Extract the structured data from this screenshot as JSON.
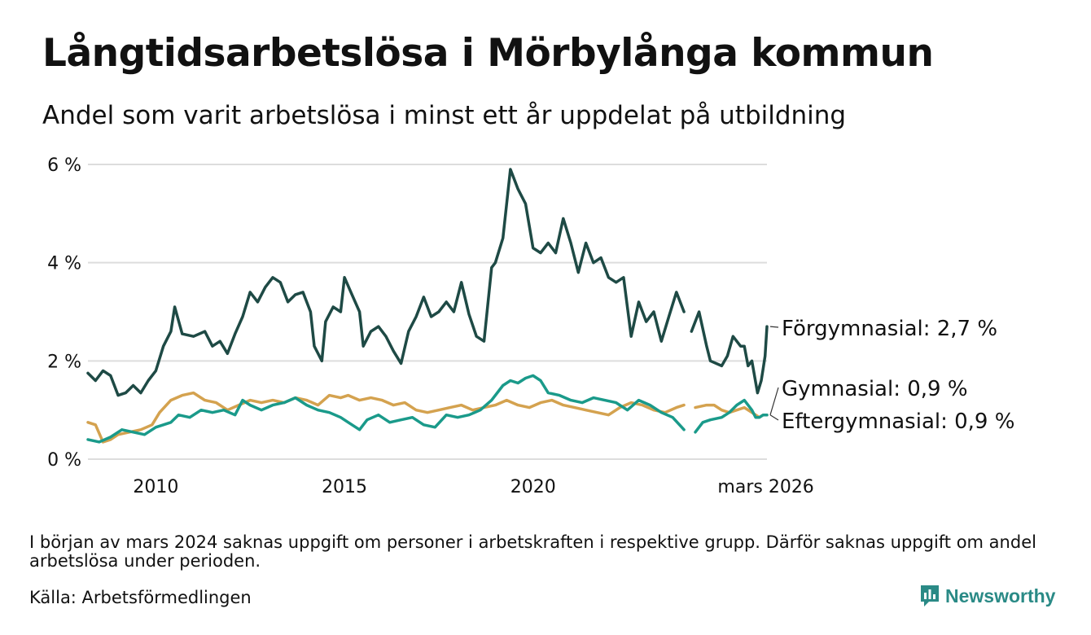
{
  "title": "Långtidsarbetslösa i Mörbylånga kommun",
  "subtitle": "Andel som varit arbetslösa i minst ett år uppdelat på utbildning",
  "note": "I början av mars 2024 saknas uppgift om personer i arbetskraften i respektive grupp. Därför saknas uppgift om andel arbetslösa under perioden.",
  "source": "Källa: Arbetsförmedlingen",
  "brand": "Newsworthy",
  "colors": {
    "forgymnasial": "#1e4a45",
    "gymnasial": "#1a9a8a",
    "eftergymnasial": "#d4a24f",
    "grid": "#dddddd",
    "brand": "#2a8a86"
  },
  "chart_data": {
    "type": "line",
    "y_ticks": [
      0,
      2,
      4,
      6
    ],
    "y_tick_labels": [
      "0 %",
      "2 %",
      "4 %",
      "6 %"
    ],
    "ylim": [
      0,
      6
    ],
    "x_range": [
      2008.2,
      2026.2
    ],
    "x_ticks": [
      2010,
      2015,
      2020,
      2026.17
    ],
    "x_tick_labels": [
      "2010",
      "2015",
      "2020",
      "mars 2026"
    ],
    "gap": [
      2024.0,
      2024.2
    ],
    "series": [
      {
        "name": "Förgymnasial",
        "key": "forgymnasial",
        "end_label": "Förgymnasial: 2,7 %",
        "points": [
          [
            2008.2,
            1.75
          ],
          [
            2008.4,
            1.6
          ],
          [
            2008.6,
            1.8
          ],
          [
            2008.8,
            1.7
          ],
          [
            2009.0,
            1.3
          ],
          [
            2009.2,
            1.35
          ],
          [
            2009.4,
            1.5
          ],
          [
            2009.6,
            1.35
          ],
          [
            2009.8,
            1.6
          ],
          [
            2010.0,
            1.8
          ],
          [
            2010.2,
            2.3
          ],
          [
            2010.4,
            2.6
          ],
          [
            2010.5,
            3.1
          ],
          [
            2010.7,
            2.55
          ],
          [
            2011.0,
            2.5
          ],
          [
            2011.3,
            2.6
          ],
          [
            2011.5,
            2.3
          ],
          [
            2011.7,
            2.4
          ],
          [
            2011.9,
            2.15
          ],
          [
            2012.1,
            2.55
          ],
          [
            2012.3,
            2.9
          ],
          [
            2012.5,
            3.4
          ],
          [
            2012.7,
            3.2
          ],
          [
            2012.9,
            3.5
          ],
          [
            2013.1,
            3.7
          ],
          [
            2013.3,
            3.6
          ],
          [
            2013.5,
            3.2
          ],
          [
            2013.7,
            3.35
          ],
          [
            2013.9,
            3.4
          ],
          [
            2014.1,
            3.0
          ],
          [
            2014.2,
            2.3
          ],
          [
            2014.4,
            2.0
          ],
          [
            2014.5,
            2.8
          ],
          [
            2014.7,
            3.1
          ],
          [
            2014.9,
            3.0
          ],
          [
            2015.0,
            3.7
          ],
          [
            2015.2,
            3.35
          ],
          [
            2015.4,
            3.0
          ],
          [
            2015.5,
            2.3
          ],
          [
            2015.7,
            2.6
          ],
          [
            2015.9,
            2.7
          ],
          [
            2016.1,
            2.5
          ],
          [
            2016.3,
            2.2
          ],
          [
            2016.5,
            1.95
          ],
          [
            2016.7,
            2.6
          ],
          [
            2016.9,
            2.9
          ],
          [
            2017.1,
            3.3
          ],
          [
            2017.3,
            2.9
          ],
          [
            2017.5,
            3.0
          ],
          [
            2017.7,
            3.2
          ],
          [
            2017.9,
            3.0
          ],
          [
            2018.1,
            3.6
          ],
          [
            2018.3,
            2.95
          ],
          [
            2018.5,
            2.5
          ],
          [
            2018.7,
            2.4
          ],
          [
            2018.9,
            3.9
          ],
          [
            2019.0,
            4.0
          ],
          [
            2019.2,
            4.5
          ],
          [
            2019.4,
            5.9
          ],
          [
            2019.6,
            5.5
          ],
          [
            2019.8,
            5.2
          ],
          [
            2020.0,
            4.3
          ],
          [
            2020.2,
            4.2
          ],
          [
            2020.4,
            4.4
          ],
          [
            2020.6,
            4.2
          ],
          [
            2020.8,
            4.9
          ],
          [
            2021.0,
            4.4
          ],
          [
            2021.2,
            3.8
          ],
          [
            2021.4,
            4.4
          ],
          [
            2021.6,
            4.0
          ],
          [
            2021.8,
            4.1
          ],
          [
            2022.0,
            3.7
          ],
          [
            2022.2,
            3.6
          ],
          [
            2022.4,
            3.7
          ],
          [
            2022.6,
            2.5
          ],
          [
            2022.8,
            3.2
          ],
          [
            2023.0,
            2.8
          ],
          [
            2023.2,
            3.0
          ],
          [
            2023.4,
            2.4
          ],
          [
            2023.6,
            2.9
          ],
          [
            2023.8,
            3.4
          ],
          [
            2024.0,
            3.0
          ],
          [
            2024.2,
            2.6
          ],
          [
            2024.4,
            3.0
          ],
          [
            2024.6,
            2.3
          ],
          [
            2024.7,
            2.0
          ],
          [
            2025.0,
            1.9
          ],
          [
            2025.15,
            2.1
          ],
          [
            2025.3,
            2.5
          ],
          [
            2025.5,
            2.3
          ],
          [
            2025.6,
            2.3
          ],
          [
            2025.7,
            1.9
          ],
          [
            2025.8,
            2.0
          ],
          [
            2025.95,
            1.35
          ],
          [
            2026.05,
            1.6
          ],
          [
            2026.1,
            1.85
          ],
          [
            2026.15,
            2.1
          ],
          [
            2026.2,
            2.7
          ]
        ]
      },
      {
        "name": "Gymnasial",
        "key": "gymnasial",
        "end_label": "Gymnasial: 0,9 %",
        "points": [
          [
            2008.2,
            0.4
          ],
          [
            2008.5,
            0.35
          ],
          [
            2008.8,
            0.45
          ],
          [
            2009.1,
            0.6
          ],
          [
            2009.4,
            0.55
          ],
          [
            2009.7,
            0.5
          ],
          [
            2010.0,
            0.65
          ],
          [
            2010.2,
            0.7
          ],
          [
            2010.4,
            0.75
          ],
          [
            2010.6,
            0.9
          ],
          [
            2010.9,
            0.85
          ],
          [
            2011.2,
            1.0
          ],
          [
            2011.5,
            0.95
          ],
          [
            2011.8,
            1.0
          ],
          [
            2012.1,
            0.9
          ],
          [
            2012.3,
            1.2
          ],
          [
            2012.5,
            1.1
          ],
          [
            2012.8,
            1.0
          ],
          [
            2013.1,
            1.1
          ],
          [
            2013.4,
            1.15
          ],
          [
            2013.7,
            1.25
          ],
          [
            2014.0,
            1.1
          ],
          [
            2014.3,
            1.0
          ],
          [
            2014.6,
            0.95
          ],
          [
            2014.9,
            0.85
          ],
          [
            2015.1,
            0.75
          ],
          [
            2015.4,
            0.6
          ],
          [
            2015.6,
            0.8
          ],
          [
            2015.9,
            0.9
          ],
          [
            2016.2,
            0.75
          ],
          [
            2016.5,
            0.8
          ],
          [
            2016.8,
            0.85
          ],
          [
            2017.1,
            0.7
          ],
          [
            2017.4,
            0.65
          ],
          [
            2017.7,
            0.9
          ],
          [
            2018.0,
            0.85
          ],
          [
            2018.3,
            0.9
          ],
          [
            2018.6,
            1.0
          ],
          [
            2018.9,
            1.2
          ],
          [
            2019.2,
            1.5
          ],
          [
            2019.4,
            1.6
          ],
          [
            2019.6,
            1.55
          ],
          [
            2019.8,
            1.65
          ],
          [
            2020.0,
            1.7
          ],
          [
            2020.2,
            1.6
          ],
          [
            2020.4,
            1.35
          ],
          [
            2020.7,
            1.3
          ],
          [
            2021.0,
            1.2
          ],
          [
            2021.3,
            1.15
          ],
          [
            2021.6,
            1.25
          ],
          [
            2021.9,
            1.2
          ],
          [
            2022.2,
            1.15
          ],
          [
            2022.5,
            1.0
          ],
          [
            2022.8,
            1.2
          ],
          [
            2023.1,
            1.1
          ],
          [
            2023.4,
            0.95
          ],
          [
            2023.7,
            0.85
          ],
          [
            2024.0,
            0.6
          ],
          [
            2024.3,
            0.55
          ],
          [
            2024.5,
            0.75
          ],
          [
            2024.7,
            0.8
          ],
          [
            2025.0,
            0.85
          ],
          [
            2025.2,
            0.95
          ],
          [
            2025.4,
            1.1
          ],
          [
            2025.6,
            1.2
          ],
          [
            2025.8,
            1.0
          ],
          [
            2025.9,
            0.85
          ],
          [
            2026.0,
            0.85
          ],
          [
            2026.1,
            0.9
          ],
          [
            2026.2,
            0.9
          ]
        ]
      },
      {
        "name": "Eftergymnasial",
        "key": "eftergymnasial",
        "end_label": "Eftergymnasial: 0,9 %",
        "points": [
          [
            2008.2,
            0.75
          ],
          [
            2008.4,
            0.7
          ],
          [
            2008.6,
            0.35
          ],
          [
            2008.8,
            0.4
          ],
          [
            2009.0,
            0.5
          ],
          [
            2009.3,
            0.55
          ],
          [
            2009.6,
            0.6
          ],
          [
            2009.9,
            0.7
          ],
          [
            2010.1,
            0.95
          ],
          [
            2010.4,
            1.2
          ],
          [
            2010.7,
            1.3
          ],
          [
            2011.0,
            1.35
          ],
          [
            2011.3,
            1.2
          ],
          [
            2011.6,
            1.15
          ],
          [
            2011.9,
            1.0
          ],
          [
            2012.2,
            1.1
          ],
          [
            2012.5,
            1.2
          ],
          [
            2012.8,
            1.15
          ],
          [
            2013.1,
            1.2
          ],
          [
            2013.4,
            1.15
          ],
          [
            2013.7,
            1.25
          ],
          [
            2014.0,
            1.2
          ],
          [
            2014.3,
            1.1
          ],
          [
            2014.6,
            1.3
          ],
          [
            2014.9,
            1.25
          ],
          [
            2015.1,
            1.3
          ],
          [
            2015.4,
            1.2
          ],
          [
            2015.7,
            1.25
          ],
          [
            2016.0,
            1.2
          ],
          [
            2016.3,
            1.1
          ],
          [
            2016.6,
            1.15
          ],
          [
            2016.9,
            1.0
          ],
          [
            2017.2,
            0.95
          ],
          [
            2017.5,
            1.0
          ],
          [
            2017.8,
            1.05
          ],
          [
            2018.1,
            1.1
          ],
          [
            2018.4,
            1.0
          ],
          [
            2018.7,
            1.05
          ],
          [
            2019.0,
            1.1
          ],
          [
            2019.3,
            1.2
          ],
          [
            2019.6,
            1.1
          ],
          [
            2019.9,
            1.05
          ],
          [
            2020.2,
            1.15
          ],
          [
            2020.5,
            1.2
          ],
          [
            2020.8,
            1.1
          ],
          [
            2021.1,
            1.05
          ],
          [
            2021.4,
            1.0
          ],
          [
            2021.7,
            0.95
          ],
          [
            2022.0,
            0.9
          ],
          [
            2022.3,
            1.05
          ],
          [
            2022.6,
            1.15
          ],
          [
            2022.9,
            1.1
          ],
          [
            2023.2,
            1.0
          ],
          [
            2023.5,
            0.95
          ],
          [
            2023.8,
            1.05
          ],
          [
            2024.0,
            1.1
          ],
          [
            2024.3,
            1.05
          ],
          [
            2024.6,
            1.1
          ],
          [
            2024.8,
            1.1
          ],
          [
            2025.0,
            1.0
          ],
          [
            2025.2,
            0.95
          ],
          [
            2025.4,
            1.0
          ],
          [
            2025.6,
            1.05
          ],
          [
            2025.8,
            0.95
          ],
          [
            2026.0,
            0.85
          ],
          [
            2026.1,
            0.9
          ],
          [
            2026.2,
            0.9
          ]
        ]
      }
    ]
  }
}
